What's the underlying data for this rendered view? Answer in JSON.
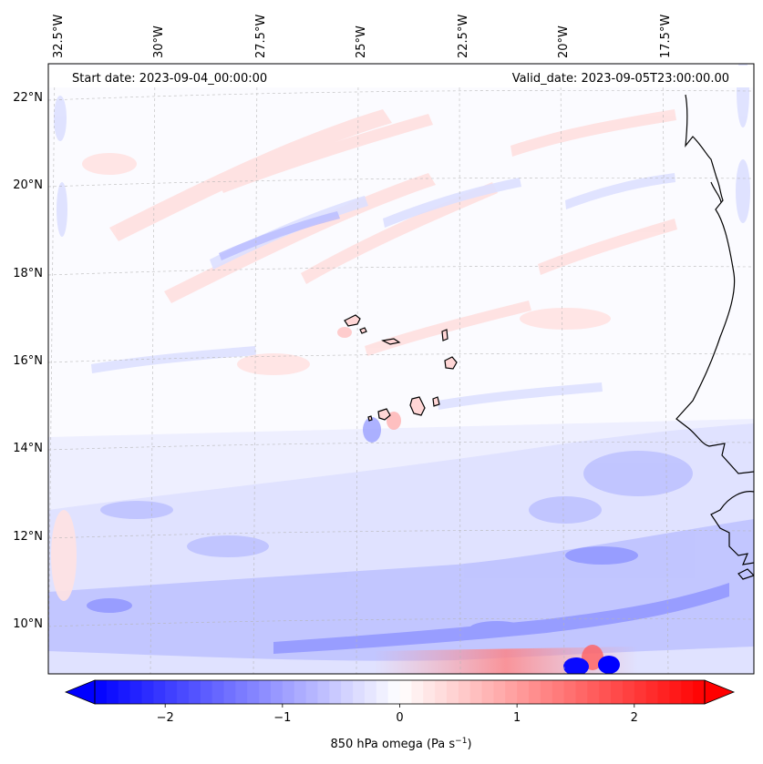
{
  "header": {
    "start_date": "Start date: 2023-09-04_00:00:00",
    "valid_date": "Valid_date: 2023-09-05T23:00:00.00"
  },
  "map": {
    "projection": "lambert-conformal",
    "lon_range": [
      -33.0,
      -15.0
    ],
    "lat_range": [
      9.0,
      22.7
    ],
    "gridlines": "dashed",
    "coastline_color": "#000000",
    "longitude_ticks": [
      "32.5°W",
      "30°W",
      "27.5°W",
      "25°W",
      "22.5°W",
      "20°W",
      "17.5°W"
    ],
    "latitude_ticks": [
      "22°N",
      "20°N",
      "18°N",
      "16°N",
      "14°N",
      "12°N",
      "10°N"
    ]
  },
  "field": {
    "variable": "850 hPa omega",
    "units": "Pa s−1",
    "colormap": "bwr",
    "vmin": -2.6,
    "vmax": 2.6,
    "colors": {
      "low": "#0000ff",
      "mid": "#ffffff",
      "high": "#ff0000"
    }
  },
  "colorbar": {
    "label_main": "850 hPa omega (Pa s",
    "label_exp": "−1",
    "label_close": ")",
    "ticks": [
      {
        "value": -2,
        "label": "−2"
      },
      {
        "value": -1,
        "label": "−1"
      },
      {
        "value": 0,
        "label": "0"
      },
      {
        "value": 1,
        "label": "1"
      },
      {
        "value": 2,
        "label": "2"
      }
    ],
    "extend": "both"
  }
}
